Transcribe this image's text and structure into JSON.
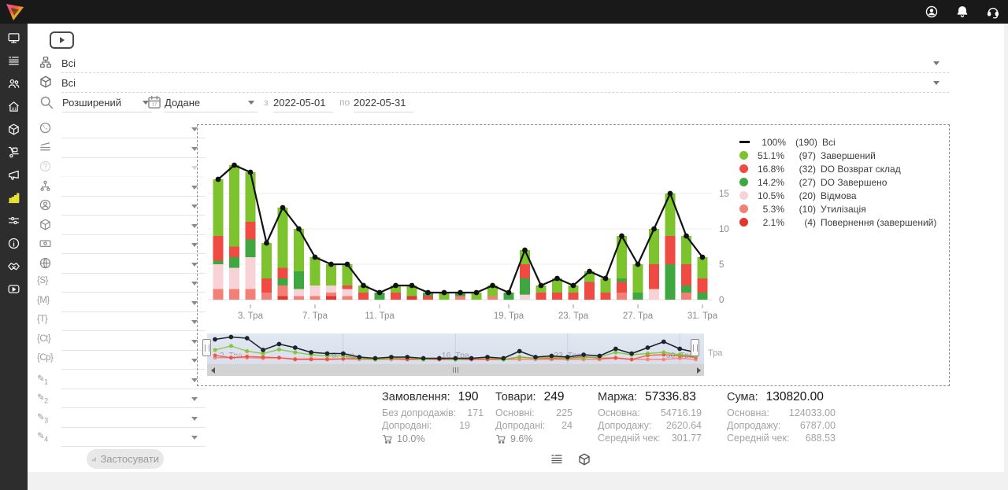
{
  "header": {
    "brand": "logo-prism",
    "icons": [
      {
        "name": "profile",
        "icon": "user"
      },
      {
        "name": "notifications",
        "icon": "bell"
      },
      {
        "name": "support",
        "icon": "headset"
      }
    ]
  },
  "sidebar": {
    "items": [
      {
        "name": "dashboard",
        "icon": "monitor",
        "active": false
      },
      {
        "name": "orders",
        "icon": "list",
        "active": false
      },
      {
        "name": "clients",
        "icon": "people",
        "active": false
      },
      {
        "name": "warehouse",
        "icon": "store",
        "active": false
      },
      {
        "name": "products",
        "icon": "package",
        "active": false
      },
      {
        "name": "supply",
        "icon": "trolley",
        "active": false
      },
      {
        "name": "marketing",
        "icon": "megaphone",
        "active": false
      },
      {
        "name": "analytics",
        "icon": "chart",
        "active": true
      },
      {
        "name": "automation",
        "icon": "sliders",
        "active": false
      },
      {
        "name": "info",
        "icon": "infoc",
        "active": false
      },
      {
        "name": "partners",
        "icon": "handshake",
        "active": false
      },
      {
        "name": "tutorials",
        "icon": "video",
        "active": false
      }
    ]
  },
  "filters": {
    "row1": {
      "icon": "tree",
      "value": "Всі"
    },
    "row2": {
      "icon": "cube",
      "value": "Всі"
    },
    "search_icon": "search",
    "search_mode": "Розширений",
    "calendar_day": "17",
    "date_field": "Додане",
    "date_from_label": "з",
    "date_from": "2022-05-01",
    "date_to_label": "по",
    "date_to": "2022-05-31",
    "left_rows": [
      {
        "name": "earth",
        "icon": "earth"
      },
      {
        "name": "ruler",
        "icon": "ruler"
      },
      {
        "name": "help",
        "icon": "help",
        "disabled": true
      },
      {
        "name": "structure",
        "icon": "sitemap"
      },
      {
        "name": "manager",
        "icon": "personc"
      },
      {
        "name": "product",
        "icon": "cube"
      },
      {
        "name": "payment",
        "icon": "banknote"
      },
      {
        "name": "site",
        "icon": "web"
      },
      {
        "name": "s-field",
        "glyph": "{S}"
      },
      {
        "name": "m-field",
        "glyph": "{M}"
      },
      {
        "name": "t-field",
        "glyph": "{T}"
      },
      {
        "name": "ct-field",
        "glyph": "{Ct}"
      },
      {
        "name": "cp-field",
        "glyph": "{Cp}"
      },
      {
        "name": "custom-1",
        "glyph": "✎",
        "sub": "1"
      },
      {
        "name": "custom-2",
        "glyph": "✎",
        "sub": "2"
      },
      {
        "name": "custom-3",
        "glyph": "✎",
        "sub": "3"
      },
      {
        "name": "custom-4",
        "glyph": "✎",
        "sub": "4"
      }
    ],
    "apply_label": "Застосувати"
  },
  "legend": [
    {
      "pct": "100%",
      "count": "(190)",
      "label": "Всі",
      "color": "#111111",
      "type": "line"
    },
    {
      "pct": "51.1%",
      "count": "(97)",
      "label": "Завершений",
      "color": "#7cc32e",
      "type": "dot"
    },
    {
      "pct": "16.8%",
      "count": "(32)",
      "label": "DO Возврат склад",
      "color": "#ef4b42",
      "type": "dot"
    },
    {
      "pct": "14.2%",
      "count": "(27)",
      "label": "DO Завершено",
      "color": "#3fa73f",
      "type": "dot"
    },
    {
      "pct": "10.5%",
      "count": "(20)",
      "label": "Відмова",
      "color": "#f7d2d6",
      "type": "dot"
    },
    {
      "pct": "5.3%",
      "count": "(10)",
      "label": "Утилізація",
      "color": "#f37f76",
      "type": "dot"
    },
    {
      "pct": "2.1%",
      "count": "(4)",
      "label": "Повернення (завершений)",
      "color": "#e2362f",
      "type": "dot"
    }
  ],
  "chart_data": {
    "type": "stacked-bar+line",
    "x_axis": "дні травня 2022 (Тра)",
    "ylim": [
      0,
      20
    ],
    "y_ticks": [
      0,
      5,
      10,
      15
    ],
    "x_tick_labels": [
      [
        3,
        "3. Тра"
      ],
      [
        7,
        "7. Тра"
      ],
      [
        11,
        "11. Тра"
      ],
      [
        19,
        "19. Тра"
      ],
      [
        23,
        "23. Тра"
      ],
      [
        27,
        "27. Тра"
      ],
      [
        31,
        "31. Тра"
      ]
    ],
    "series_names": {
      "z": "Завершений",
      "r": "DO Возврат склад",
      "g": "DO Завершено",
      "p": "Відмова",
      "u": "Утилізація",
      "v": "Повернення (завершений)",
      "total": "Всі"
    },
    "series_colors": {
      "z": "#7cc32e",
      "r": "#ef4b42",
      "g": "#3fa73f",
      "p": "#f7d2d6",
      "u": "#f37f76",
      "v": "#e2362f",
      "total": "#111111"
    },
    "bars": [
      {
        "day": 1,
        "segments": [
          [
            "u",
            1.5
          ],
          [
            "p",
            3.5
          ],
          [
            "g",
            0.5
          ],
          [
            "r",
            3.5
          ],
          [
            "z",
            8
          ]
        ]
      },
      {
        "day": 2,
        "segments": [
          [
            "u",
            1.5
          ],
          [
            "p",
            3
          ],
          [
            "g",
            1.5
          ],
          [
            "r",
            1.5
          ],
          [
            "z",
            11.5
          ]
        ]
      },
      {
        "day": 3,
        "segments": [
          [
            "u",
            1.5
          ],
          [
            "p",
            4.5
          ],
          [
            "g",
            2.5
          ],
          [
            "r",
            2.5
          ],
          [
            "z",
            7
          ]
        ]
      },
      {
        "day": 4,
        "segments": [
          [
            "u",
            1
          ],
          [
            "r",
            2
          ],
          [
            "z",
            5
          ]
        ]
      },
      {
        "day": 5,
        "segments": [
          [
            "v",
            0.5
          ],
          [
            "u",
            1.5
          ],
          [
            "g",
            1
          ],
          [
            "r",
            1.5
          ],
          [
            "z",
            8.5
          ]
        ]
      },
      {
        "day": 6,
        "segments": [
          [
            "u",
            0.5
          ],
          [
            "p",
            1
          ],
          [
            "g",
            2.5
          ],
          [
            "z",
            6
          ]
        ]
      },
      {
        "day": 7,
        "segments": [
          [
            "u",
            0.5
          ],
          [
            "p",
            1.5
          ],
          [
            "z",
            4
          ]
        ]
      },
      {
        "day": 8,
        "segments": [
          [
            "v",
            0.5
          ],
          [
            "u",
            0.5
          ],
          [
            "p",
            1
          ],
          [
            "z",
            3
          ]
        ]
      },
      {
        "day": 9,
        "segments": [
          [
            "u",
            0.5
          ],
          [
            "p",
            1
          ],
          [
            "r",
            0.5
          ],
          [
            "z",
            3
          ]
        ]
      },
      {
        "day": 10,
        "segments": [
          [
            "r",
            1
          ],
          [
            "z",
            1
          ]
        ]
      },
      {
        "day": 11,
        "segments": [
          [
            "g",
            1
          ]
        ]
      },
      {
        "day": 12,
        "segments": [
          [
            "r",
            1
          ],
          [
            "z",
            1
          ]
        ]
      },
      {
        "day": 13,
        "segments": [
          [
            "v",
            0.5
          ],
          [
            "z",
            1.5
          ]
        ]
      },
      {
        "day": 14,
        "segments": [
          [
            "r",
            0.5
          ],
          [
            "g",
            0.5
          ]
        ]
      },
      {
        "day": 15,
        "segments": [
          [
            "z",
            1
          ]
        ]
      },
      {
        "day": 16,
        "segments": [
          [
            "u",
            0.5
          ],
          [
            "g",
            0.5
          ]
        ]
      },
      {
        "day": 17,
        "segments": [
          [
            "z",
            1
          ]
        ]
      },
      {
        "day": 18,
        "segments": [
          [
            "u",
            0.5
          ],
          [
            "z",
            1.5
          ]
        ]
      },
      {
        "day": 19,
        "segments": [
          [
            "g",
            1
          ]
        ]
      },
      {
        "day": 20,
        "segments": [
          [
            "p",
            0.7
          ],
          [
            "g",
            2.3
          ],
          [
            "r",
            2
          ],
          [
            "z",
            2
          ]
        ]
      },
      {
        "day": 21,
        "segments": [
          [
            "r",
            1
          ],
          [
            "z",
            1
          ]
        ]
      },
      {
        "day": 22,
        "segments": [
          [
            "r",
            1
          ],
          [
            "z",
            2
          ]
        ]
      },
      {
        "day": 23,
        "segments": [
          [
            "r",
            1
          ],
          [
            "z",
            1
          ]
        ]
      },
      {
        "day": 24,
        "segments": [
          [
            "r",
            2.5
          ],
          [
            "z",
            1.5
          ]
        ]
      },
      {
        "day": 25,
        "segments": [
          [
            "r",
            1
          ],
          [
            "z",
            2
          ]
        ]
      },
      {
        "day": 26,
        "segments": [
          [
            "u",
            1
          ],
          [
            "r",
            1.5
          ],
          [
            "g",
            0.5
          ],
          [
            "z",
            6
          ]
        ]
      },
      {
        "day": 27,
        "segments": [
          [
            "g",
            1
          ],
          [
            "z",
            4
          ]
        ]
      },
      {
        "day": 28,
        "segments": [
          [
            "p",
            1.5
          ],
          [
            "r",
            3.5
          ],
          [
            "z",
            5
          ]
        ]
      },
      {
        "day": 29,
        "segments": [
          [
            "g",
            5
          ],
          [
            "r",
            4
          ],
          [
            "z",
            6
          ]
        ]
      },
      {
        "day": 30,
        "segments": [
          [
            "u",
            1
          ],
          [
            "g",
            1
          ],
          [
            "r",
            3
          ],
          [
            "z",
            4
          ]
        ]
      },
      {
        "day": 31,
        "segments": [
          [
            "g",
            1
          ],
          [
            "r",
            2
          ],
          [
            "z",
            3
          ]
        ]
      }
    ],
    "navigator_labels": [
      [
        2,
        "2. Тра"
      ],
      [
        9,
        "9. Тра"
      ],
      [
        16,
        "16. Тра"
      ],
      [
        23,
        "23. Тра"
      ],
      [
        30,
        "30. Тра"
      ]
    ],
    "navigator_overflow_label": "Тра"
  },
  "stats": {
    "columns": [
      {
        "title": "Замовлення:",
        "value": "190",
        "width": 112,
        "rows": [
          [
            "Без допродажів:",
            "171"
          ],
          [
            "Допродані:",
            "19"
          ]
        ],
        "cart_pct": "10.0%"
      },
      {
        "title": "Товари:",
        "value": "249",
        "width": 98,
        "rows": [
          [
            "Основні:",
            "225"
          ],
          [
            "Допродані:",
            "24"
          ]
        ],
        "cart_pct": "9.6%"
      },
      {
        "title": "Маржа:",
        "value": "57336.83",
        "width": 132,
        "rows": [
          [
            "Основна:",
            "54716.19"
          ],
          [
            "Допродажу:",
            "2620.64"
          ],
          [
            "Середній чек:",
            "301.77"
          ]
        ]
      },
      {
        "title": "Сума:",
        "value": "130820.00",
        "width": 138,
        "rows": [
          [
            "Основна:",
            "124033.00"
          ],
          [
            "Допродажу:",
            "6787.00"
          ],
          [
            "Середній чек:",
            "688.53"
          ]
        ]
      }
    ],
    "view_buttons": [
      {
        "name": "orders-list-view",
        "icon": "list"
      },
      {
        "name": "products-view",
        "icon": "cube"
      }
    ]
  }
}
